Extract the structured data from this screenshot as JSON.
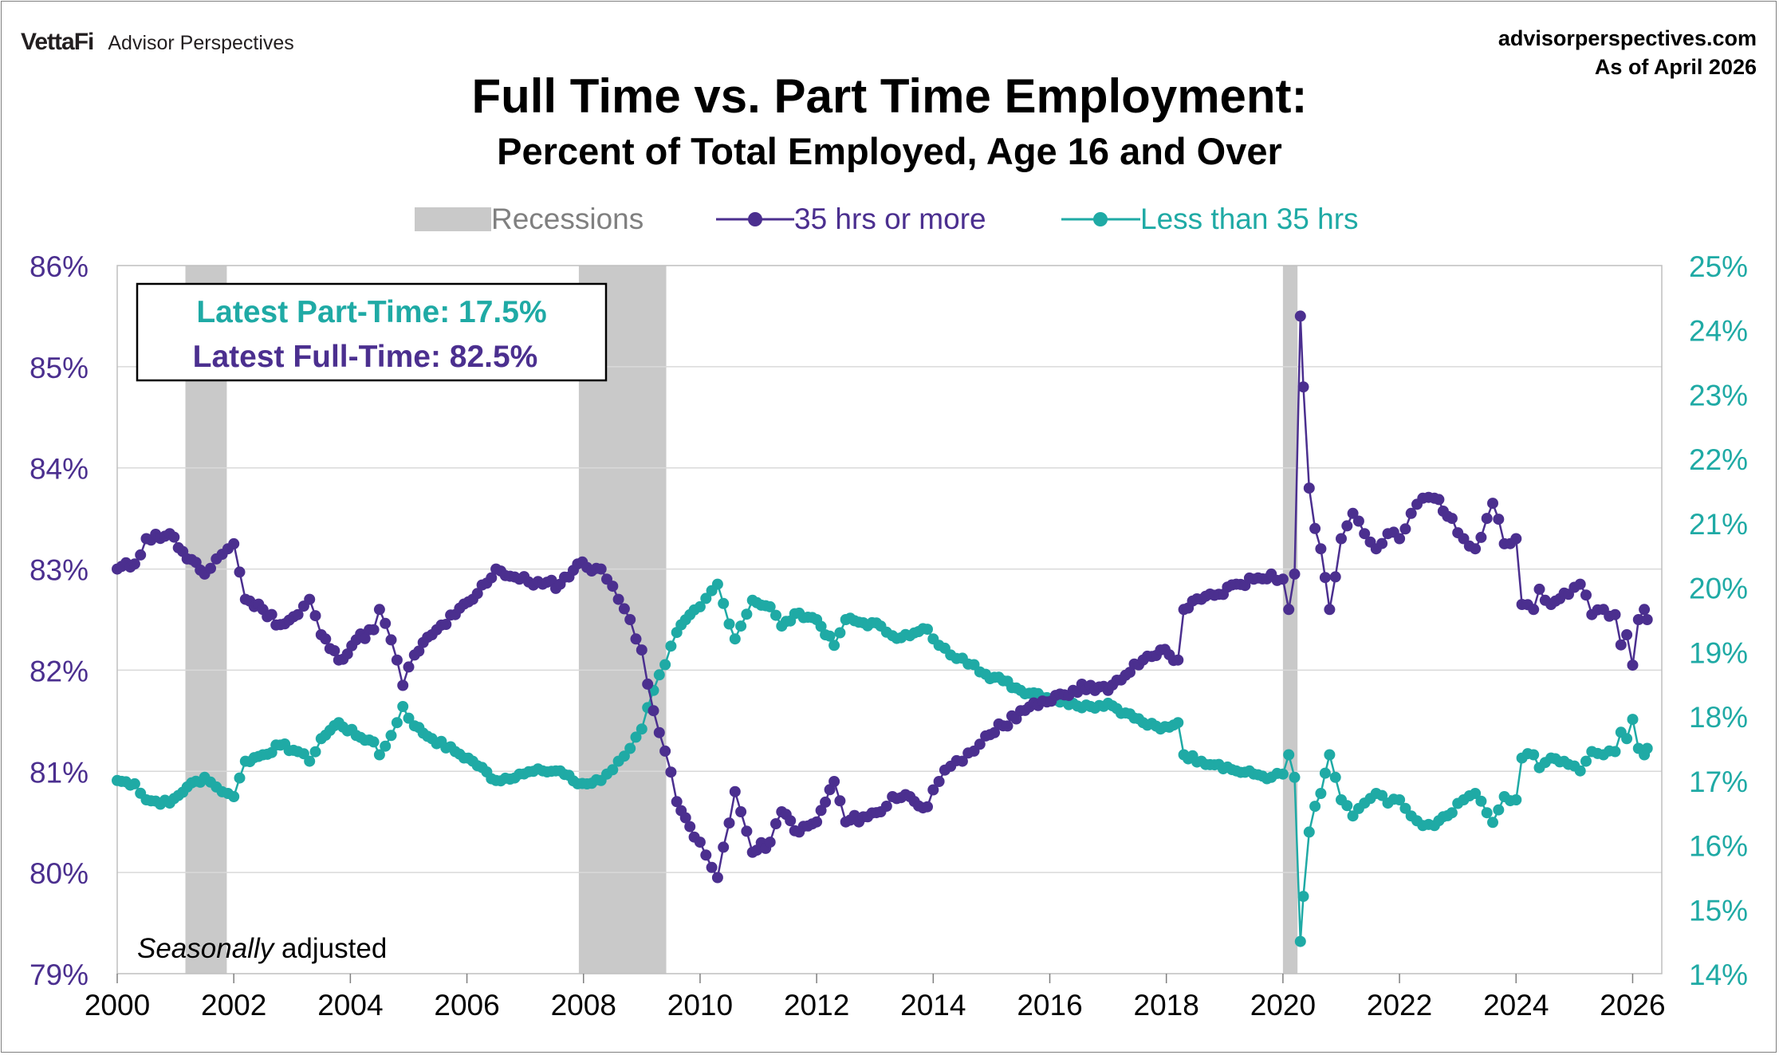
{
  "header": {
    "brand_logo": "VettaFi",
    "brand_name": "Advisor Perspectives",
    "site": "advisorperspectives.com",
    "as_of": "As of April 2026"
  },
  "chart_data": {
    "type": "line",
    "title": "Full Time vs. Part Time Employment:",
    "subtitle": "Percent of Total Employed, Age 16 and Over",
    "legend": {
      "position": "top-center",
      "recessions_label": "Recessions",
      "full_label": "35 hrs or more",
      "part_label": "Less than 35 hrs"
    },
    "y_left": {
      "min": 79,
      "max": 86,
      "step": 1,
      "format": "%"
    },
    "y_right": {
      "min": 14,
      "max": 25,
      "step": 1,
      "format": "%"
    },
    "x_axis": {
      "min": 2000,
      "max": 2026.5,
      "ticks": [
        "2000",
        "2002",
        "2004",
        "2006",
        "2008",
        "2010",
        "2012",
        "2014",
        "2016",
        "2018",
        "2020",
        "2022",
        "2024",
        "2026"
      ]
    },
    "recessions": [
      [
        2001.17,
        2001.88
      ],
      [
        2007.92,
        2009.42
      ],
      [
        2020.0,
        2020.25
      ]
    ],
    "annotation": {
      "part_time": "Latest Part-Time: 17.5%",
      "full_time": "Latest Full-Time: 82.5%"
    },
    "footnote": {
      "seasonal": "Seasonally",
      "adjusted": " adjusted"
    },
    "colors": {
      "full": "#4b2f8f",
      "part": "#1faaa5",
      "recession": "#c9c9c9",
      "grid": "#d9d9d9"
    },
    "series": [
      {
        "name": "35 hrs or more",
        "axis": "left",
        "anchors": [
          [
            2000.0,
            83.0
          ],
          [
            2000.3,
            83.05
          ],
          [
            2000.5,
            83.3
          ],
          [
            2000.9,
            83.35
          ],
          [
            2001.2,
            83.1
          ],
          [
            2001.5,
            82.95
          ],
          [
            2001.7,
            83.1
          ],
          [
            2001.9,
            83.2
          ],
          [
            2002.0,
            83.25
          ],
          [
            2002.2,
            82.7
          ],
          [
            2002.5,
            82.6
          ],
          [
            2002.8,
            82.45
          ],
          [
            2003.1,
            82.55
          ],
          [
            2003.3,
            82.7
          ],
          [
            2003.5,
            82.35
          ],
          [
            2003.8,
            82.1
          ],
          [
            2004.1,
            82.3
          ],
          [
            2004.4,
            82.4
          ],
          [
            2004.5,
            82.6
          ],
          [
            2004.7,
            82.3
          ],
          [
            2004.8,
            82.1
          ],
          [
            2004.9,
            81.85
          ],
          [
            2005.1,
            82.15
          ],
          [
            2005.4,
            82.35
          ],
          [
            2005.8,
            82.55
          ],
          [
            2006.1,
            82.7
          ],
          [
            2006.5,
            83.0
          ],
          [
            2006.9,
            82.9
          ],
          [
            2007.3,
            82.85
          ],
          [
            2007.6,
            82.85
          ],
          [
            2007.9,
            83.05
          ],
          [
            2008.3,
            83.0
          ],
          [
            2008.4,
            82.9
          ],
          [
            2008.6,
            82.7
          ],
          [
            2008.8,
            82.5
          ],
          [
            2009.0,
            82.2
          ],
          [
            2009.2,
            81.6
          ],
          [
            2009.4,
            81.2
          ],
          [
            2009.6,
            80.7
          ],
          [
            2009.9,
            80.35
          ],
          [
            2010.0,
            80.3
          ],
          [
            2010.2,
            80.05
          ],
          [
            2010.3,
            79.95
          ],
          [
            2010.4,
            80.25
          ],
          [
            2010.6,
            80.8
          ],
          [
            2010.7,
            80.6
          ],
          [
            2010.9,
            80.2
          ],
          [
            2011.2,
            80.3
          ],
          [
            2011.4,
            80.6
          ],
          [
            2011.7,
            80.4
          ],
          [
            2012.0,
            80.5
          ],
          [
            2012.3,
            80.9
          ],
          [
            2012.5,
            80.5
          ],
          [
            2012.8,
            80.55
          ],
          [
            2013.1,
            80.6
          ],
          [
            2013.3,
            80.75
          ],
          [
            2013.6,
            80.75
          ],
          [
            2013.9,
            80.65
          ],
          [
            2014.1,
            80.9
          ],
          [
            2014.3,
            81.05
          ],
          [
            2014.5,
            81.1
          ],
          [
            2014.7,
            81.2
          ],
          [
            2014.9,
            81.35
          ],
          [
            2015.2,
            81.45
          ],
          [
            2015.5,
            81.6
          ],
          [
            2015.8,
            81.65
          ],
          [
            2016.1,
            81.75
          ],
          [
            2016.4,
            81.8
          ],
          [
            2016.7,
            81.85
          ],
          [
            2017.0,
            81.8
          ],
          [
            2017.3,
            81.95
          ],
          [
            2017.6,
            82.1
          ],
          [
            2017.9,
            82.2
          ],
          [
            2018.2,
            82.1
          ],
          [
            2018.3,
            82.6
          ],
          [
            2018.6,
            82.7
          ],
          [
            2018.9,
            82.75
          ],
          [
            2019.2,
            82.85
          ],
          [
            2019.5,
            82.9
          ],
          [
            2019.8,
            82.95
          ],
          [
            2020.0,
            82.9
          ],
          [
            2020.1,
            82.6
          ],
          [
            2020.2,
            82.95
          ],
          [
            2020.3,
            85.5
          ],
          [
            2020.35,
            84.8
          ],
          [
            2020.45,
            83.8
          ],
          [
            2020.55,
            83.4
          ],
          [
            2020.65,
            83.2
          ],
          [
            2020.8,
            82.6
          ],
          [
            2021.0,
            83.3
          ],
          [
            2021.2,
            83.55
          ],
          [
            2021.4,
            83.35
          ],
          [
            2021.6,
            83.2
          ],
          [
            2021.8,
            83.35
          ],
          [
            2022.0,
            83.3
          ],
          [
            2022.2,
            83.55
          ],
          [
            2022.4,
            83.7
          ],
          [
            2022.6,
            83.7
          ],
          [
            2022.9,
            83.5
          ],
          [
            2023.1,
            83.3
          ],
          [
            2023.3,
            83.2
          ],
          [
            2023.5,
            83.5
          ],
          [
            2023.6,
            83.65
          ],
          [
            2023.8,
            83.25
          ],
          [
            2024.0,
            83.3
          ],
          [
            2024.1,
            82.65
          ],
          [
            2024.3,
            82.6
          ],
          [
            2024.4,
            82.8
          ],
          [
            2024.6,
            82.65
          ],
          [
            2024.9,
            82.75
          ],
          [
            2025.1,
            82.85
          ],
          [
            2025.3,
            82.55
          ],
          [
            2025.5,
            82.6
          ],
          [
            2025.7,
            82.55
          ],
          [
            2025.8,
            82.25
          ],
          [
            2025.9,
            82.35
          ],
          [
            2026.0,
            82.05
          ],
          [
            2026.1,
            82.5
          ],
          [
            2026.2,
            82.6
          ],
          [
            2026.25,
            82.5
          ]
        ]
      },
      {
        "name": "Less than 35 hrs",
        "axis": "right",
        "anchors": [
          [
            2000.0,
            17.0
          ],
          [
            2000.3,
            16.95
          ],
          [
            2000.5,
            16.7
          ],
          [
            2000.9,
            16.65
          ],
          [
            2001.2,
            16.9
          ],
          [
            2001.5,
            17.05
          ],
          [
            2001.7,
            16.9
          ],
          [
            2001.9,
            16.8
          ],
          [
            2002.0,
            16.75
          ],
          [
            2002.2,
            17.3
          ],
          [
            2002.5,
            17.4
          ],
          [
            2002.8,
            17.55
          ],
          [
            2003.1,
            17.45
          ],
          [
            2003.3,
            17.3
          ],
          [
            2003.5,
            17.65
          ],
          [
            2003.8,
            17.9
          ],
          [
            2004.1,
            17.7
          ],
          [
            2004.4,
            17.6
          ],
          [
            2004.5,
            17.4
          ],
          [
            2004.7,
            17.7
          ],
          [
            2004.8,
            17.9
          ],
          [
            2004.9,
            18.15
          ],
          [
            2005.1,
            17.85
          ],
          [
            2005.4,
            17.65
          ],
          [
            2005.8,
            17.45
          ],
          [
            2006.1,
            17.3
          ],
          [
            2006.5,
            17.0
          ],
          [
            2006.9,
            17.1
          ],
          [
            2007.3,
            17.15
          ],
          [
            2007.6,
            17.15
          ],
          [
            2007.9,
            16.95
          ],
          [
            2008.3,
            17.0
          ],
          [
            2008.4,
            17.1
          ],
          [
            2008.6,
            17.3
          ],
          [
            2008.8,
            17.5
          ],
          [
            2009.0,
            17.8
          ],
          [
            2009.2,
            18.4
          ],
          [
            2009.4,
            18.8
          ],
          [
            2009.6,
            19.3
          ],
          [
            2009.9,
            19.65
          ],
          [
            2010.0,
            19.7
          ],
          [
            2010.2,
            19.95
          ],
          [
            2010.3,
            20.05
          ],
          [
            2010.4,
            19.75
          ],
          [
            2010.6,
            19.2
          ],
          [
            2010.7,
            19.4
          ],
          [
            2010.9,
            19.8
          ],
          [
            2011.2,
            19.7
          ],
          [
            2011.4,
            19.4
          ],
          [
            2011.7,
            19.6
          ],
          [
            2012.0,
            19.5
          ],
          [
            2012.3,
            19.1
          ],
          [
            2012.5,
            19.5
          ],
          [
            2012.8,
            19.45
          ],
          [
            2013.1,
            19.4
          ],
          [
            2013.3,
            19.25
          ],
          [
            2013.6,
            19.25
          ],
          [
            2013.9,
            19.35
          ],
          [
            2014.1,
            19.1
          ],
          [
            2014.3,
            18.95
          ],
          [
            2014.5,
            18.9
          ],
          [
            2014.7,
            18.8
          ],
          [
            2014.9,
            18.65
          ],
          [
            2015.2,
            18.55
          ],
          [
            2015.5,
            18.4
          ],
          [
            2015.8,
            18.35
          ],
          [
            2016.1,
            18.25
          ],
          [
            2016.4,
            18.2
          ],
          [
            2016.7,
            18.15
          ],
          [
            2017.0,
            18.2
          ],
          [
            2017.3,
            18.05
          ],
          [
            2017.6,
            17.9
          ],
          [
            2017.9,
            17.8
          ],
          [
            2018.2,
            17.9
          ],
          [
            2018.3,
            17.4
          ],
          [
            2018.6,
            17.3
          ],
          [
            2018.9,
            17.25
          ],
          [
            2019.2,
            17.15
          ],
          [
            2019.5,
            17.1
          ],
          [
            2019.8,
            17.05
          ],
          [
            2020.0,
            17.1
          ],
          [
            2020.1,
            17.4
          ],
          [
            2020.2,
            17.05
          ],
          [
            2020.3,
            14.5
          ],
          [
            2020.35,
            15.2
          ],
          [
            2020.45,
            16.2
          ],
          [
            2020.55,
            16.6
          ],
          [
            2020.65,
            16.8
          ],
          [
            2020.8,
            17.4
          ],
          [
            2021.0,
            16.7
          ],
          [
            2021.2,
            16.45
          ],
          [
            2021.4,
            16.65
          ],
          [
            2021.6,
            16.8
          ],
          [
            2021.8,
            16.65
          ],
          [
            2022.0,
            16.7
          ],
          [
            2022.2,
            16.45
          ],
          [
            2022.4,
            16.3
          ],
          [
            2022.6,
            16.3
          ],
          [
            2022.9,
            16.5
          ],
          [
            2023.1,
            16.7
          ],
          [
            2023.3,
            16.8
          ],
          [
            2023.5,
            16.5
          ],
          [
            2023.6,
            16.35
          ],
          [
            2023.8,
            16.75
          ],
          [
            2024.0,
            16.7
          ],
          [
            2024.1,
            17.35
          ],
          [
            2024.3,
            17.4
          ],
          [
            2024.4,
            17.2
          ],
          [
            2024.6,
            17.35
          ],
          [
            2024.9,
            17.25
          ],
          [
            2025.1,
            17.15
          ],
          [
            2025.3,
            17.45
          ],
          [
            2025.5,
            17.4
          ],
          [
            2025.7,
            17.45
          ],
          [
            2025.8,
            17.75
          ],
          [
            2025.9,
            17.65
          ],
          [
            2026.0,
            17.95
          ],
          [
            2026.1,
            17.5
          ],
          [
            2026.2,
            17.4
          ],
          [
            2026.25,
            17.5
          ]
        ]
      }
    ]
  }
}
